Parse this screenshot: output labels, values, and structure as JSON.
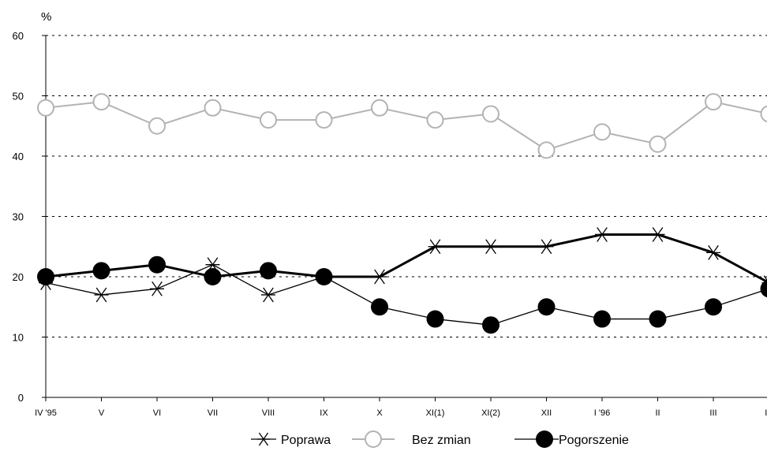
{
  "chart_data": {
    "type": "line",
    "unit_label": "%",
    "categories": [
      "IV '95",
      "V",
      "VI",
      "VII",
      "VIII",
      "IX",
      "X",
      "XI(1)",
      "XI(2)",
      "XII",
      "I '96",
      "II",
      "III",
      "IV"
    ],
    "ylim": [
      0,
      60
    ],
    "yticks": [
      0,
      10,
      20,
      30,
      40,
      50,
      60
    ],
    "grid": "dashed-horizontal",
    "legend_position": "bottom",
    "series": [
      {
        "name": "Poprawa",
        "marker": "asterisk",
        "color": "#000000",
        "values": [
          19,
          17,
          18,
          22,
          17,
          20,
          20,
          25,
          25,
          25,
          27,
          27,
          24,
          19
        ]
      },
      {
        "name": "Bez zmian",
        "marker": "open-circle",
        "color": "#b3b3b3",
        "values": [
          48,
          49,
          45,
          48,
          46,
          46,
          48,
          46,
          47,
          41,
          44,
          42,
          49,
          47
        ]
      },
      {
        "name": "Pogorszenie",
        "marker": "filled-circle",
        "color": "#000000",
        "values": [
          20,
          21,
          22,
          20,
          21,
          20,
          15,
          13,
          12,
          15,
          13,
          13,
          15,
          18
        ]
      }
    ]
  }
}
